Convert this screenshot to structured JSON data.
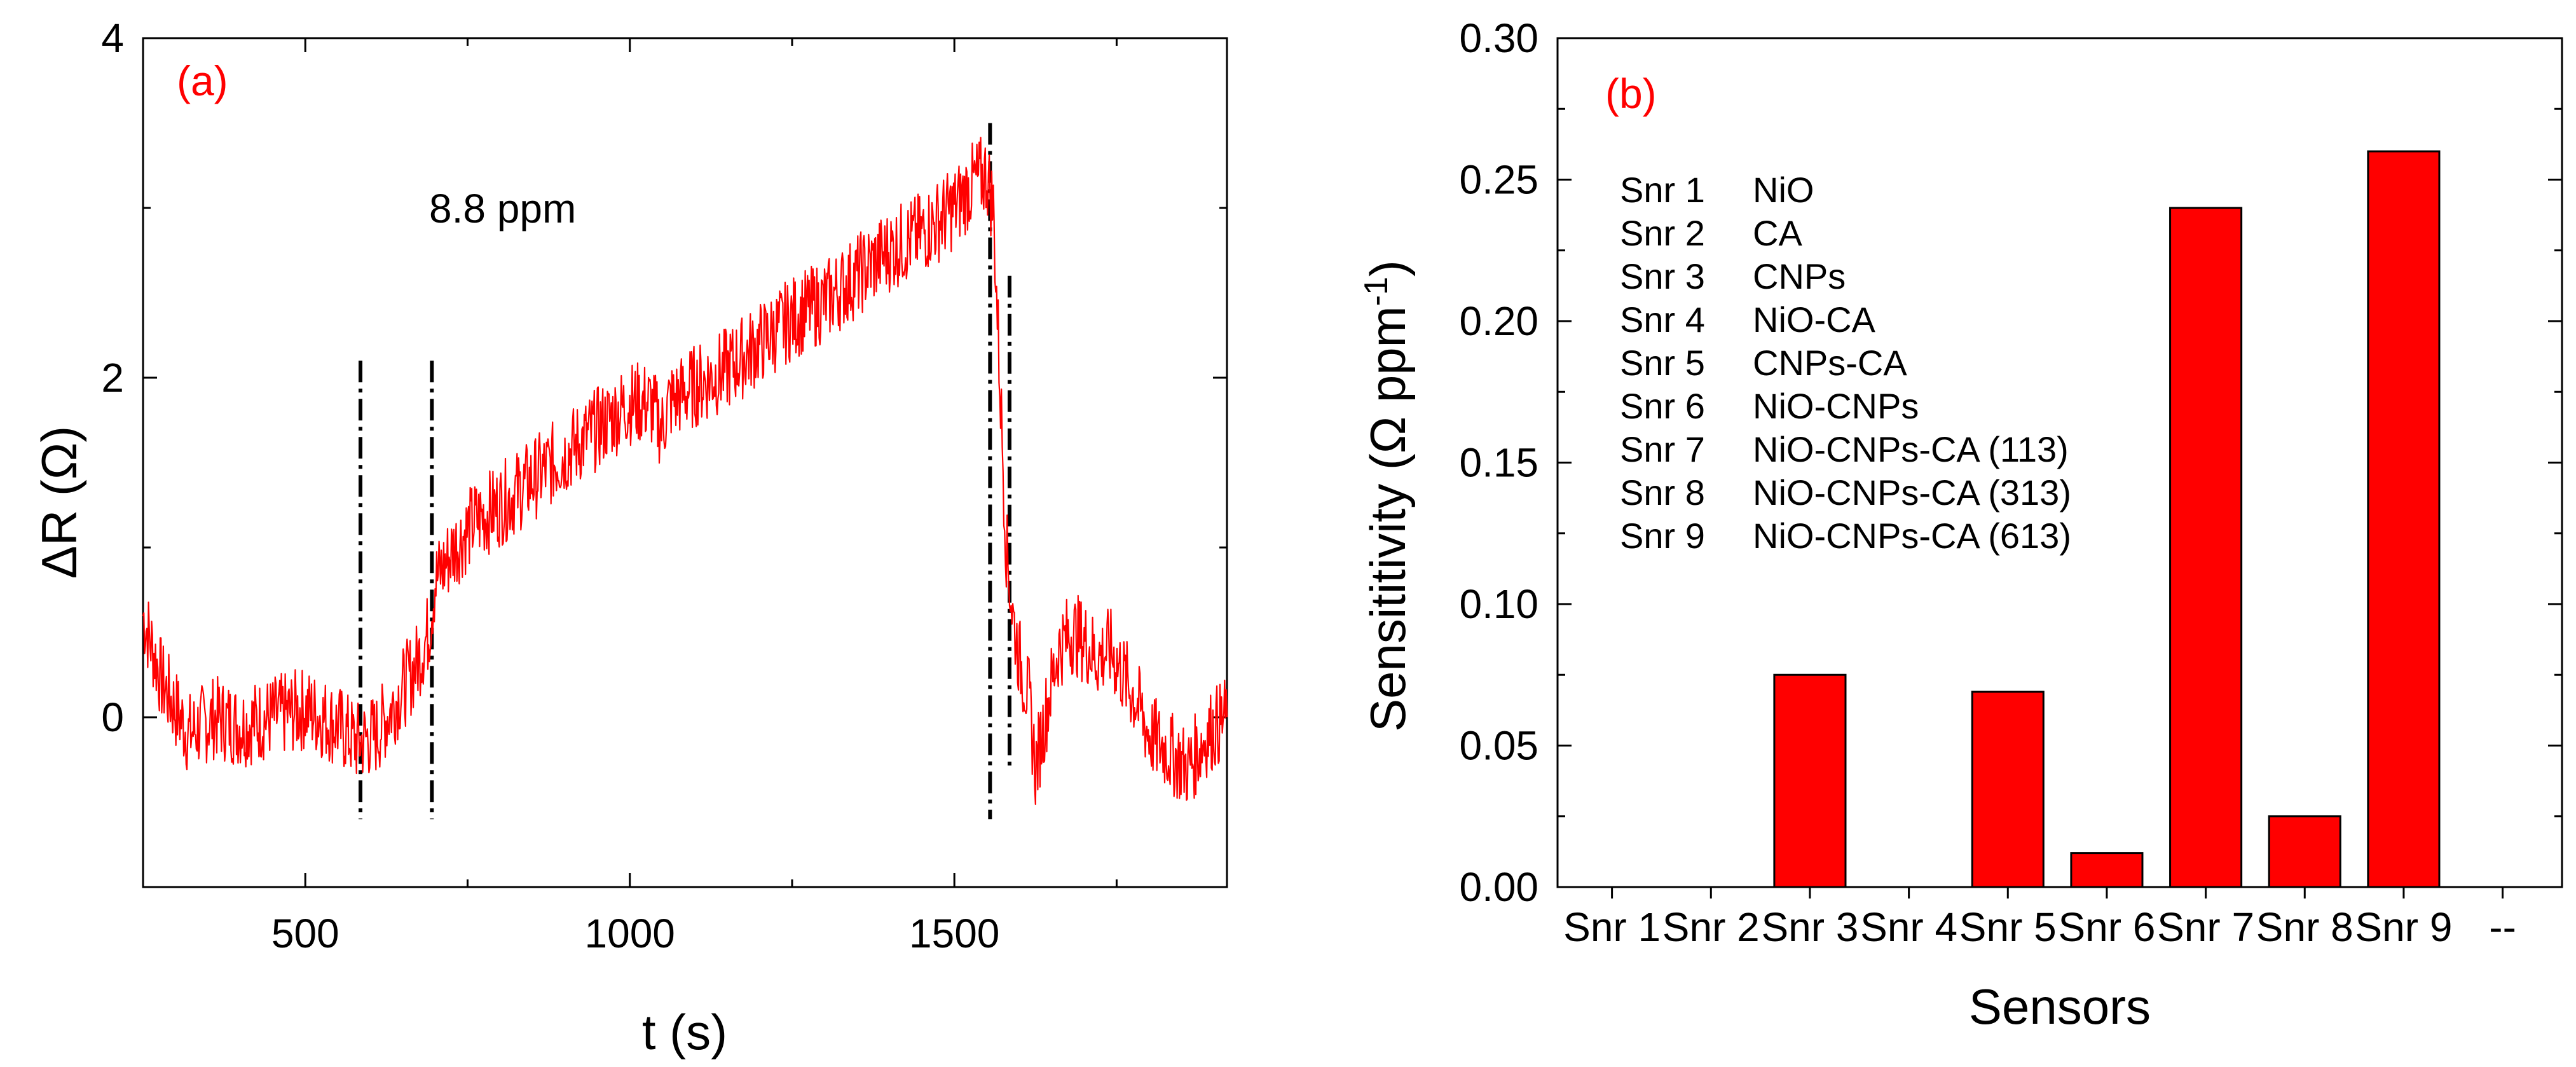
{
  "chart_data": [
    {
      "type": "line",
      "panel_label": "(a)",
      "xlabel": "t (s)",
      "ylabel_symbol": "ΔR",
      "ylabel_unit": "(Ω)",
      "xlim": [
        250,
        1920
      ],
      "ylim": [
        -1,
        4
      ],
      "xticks": [
        500,
        1000,
        1500
      ],
      "xtick_labels": [
        "500",
        "1000",
        "1500"
      ],
      "yticks": [
        0,
        2,
        4
      ],
      "ytick_labels": [
        "0",
        "2",
        "4"
      ],
      "annotation": "8.8 ppm",
      "series": [
        {
          "name": "ΔR response",
          "color": "#ff0000",
          "x": [
            250,
            280,
            320,
            360,
            400,
            450,
            500,
            550,
            580,
            610,
            640,
            670,
            690,
            700,
            730,
            760,
            800,
            850,
            900,
            950,
            1000,
            1030,
            1050,
            1060,
            1100,
            1150,
            1200,
            1250,
            1300,
            1350,
            1400,
            1450,
            1500,
            1530,
            1550,
            1560,
            1570,
            1580,
            1590,
            1600,
            1615,
            1625,
            1640,
            1660,
            1680,
            1700,
            1720,
            1740,
            1760,
            1780,
            1800,
            1830,
            1860,
            1890,
            1920
          ],
          "y": [
            0.6,
            0.2,
            -0.1,
            0.0,
            -0.05,
            0.0,
            0.05,
            -0.05,
            -0.15,
            -0.1,
            0.1,
            0.3,
            0.5,
            0.8,
            1.0,
            1.15,
            1.25,
            1.4,
            1.55,
            1.7,
            1.85,
            1.85,
            1.7,
            1.85,
            1.95,
            2.05,
            2.2,
            2.35,
            2.45,
            2.6,
            2.75,
            2.85,
            3.0,
            3.15,
            3.2,
            3.0,
            2.0,
            1.0,
            0.6,
            0.35,
            0.1,
            -0.3,
            0.0,
            0.4,
            0.5,
            0.45,
            0.35,
            0.4,
            0.25,
            0.1,
            -0.1,
            -0.2,
            -0.3,
            -0.1,
            0.0
          ]
        }
      ],
      "event_markers": [
        {
          "x": 585,
          "y_range": [
            -0.6,
            2.1
          ],
          "style": "dash-dot"
        },
        {
          "x": 695,
          "y_range": [
            -0.6,
            2.1
          ],
          "style": "dash-dot"
        },
        {
          "x": 1555,
          "y_range": [
            -0.6,
            3.5
          ],
          "style": "dash-dot"
        },
        {
          "x": 1585,
          "y_range": [
            -0.3,
            2.6
          ],
          "style": "dash-dot"
        }
      ]
    },
    {
      "type": "bar",
      "panel_label": "(b)",
      "xlabel": "Sensors",
      "ylabel_main": "Sensititivity (Ω ppm",
      "ylabel_sup": "-1",
      "ylabel_close": ")",
      "categories": [
        "Snr 1",
        "Snr 2",
        "Snr 3",
        "Snr 4",
        "Snr 5",
        "Snr 6",
        "Snr 7",
        "Snr 8",
        "Snr 9",
        "--"
      ],
      "values": [
        0,
        0,
        0.075,
        0,
        0.069,
        0.012,
        0.24,
        0.025,
        0.26,
        0
      ],
      "ylim": [
        0,
        0.3
      ],
      "yticks": [
        0.0,
        0.05,
        0.1,
        0.15,
        0.2,
        0.25,
        0.3
      ],
      "ytick_labels": [
        "0.00",
        "0.05",
        "0.10",
        "0.15",
        "0.20",
        "0.25",
        "0.30"
      ],
      "bar_color": "#ff0000",
      "legend": [
        {
          "id": "Snr 1",
          "material": "NiO"
        },
        {
          "id": "Snr 2",
          "material": "CA"
        },
        {
          "id": "Snr 3",
          "material": "CNPs"
        },
        {
          "id": "Snr 4",
          "material": "NiO-CA"
        },
        {
          "id": "Snr 5",
          "material": "CNPs-CA"
        },
        {
          "id": "Snr 6",
          "material": "NiO-CNPs"
        },
        {
          "id": "Snr 7",
          "material": "NiO-CNPs-CA (113)"
        },
        {
          "id": "Snr 8",
          "material": "NiO-CNPs-CA (313)"
        },
        {
          "id": "Snr 9",
          "material": "NiO-CNPs-CA (613)"
        }
      ]
    }
  ],
  "colors": {
    "data": "#ff0000",
    "axes": "#000000",
    "tag": "#ff0000"
  }
}
